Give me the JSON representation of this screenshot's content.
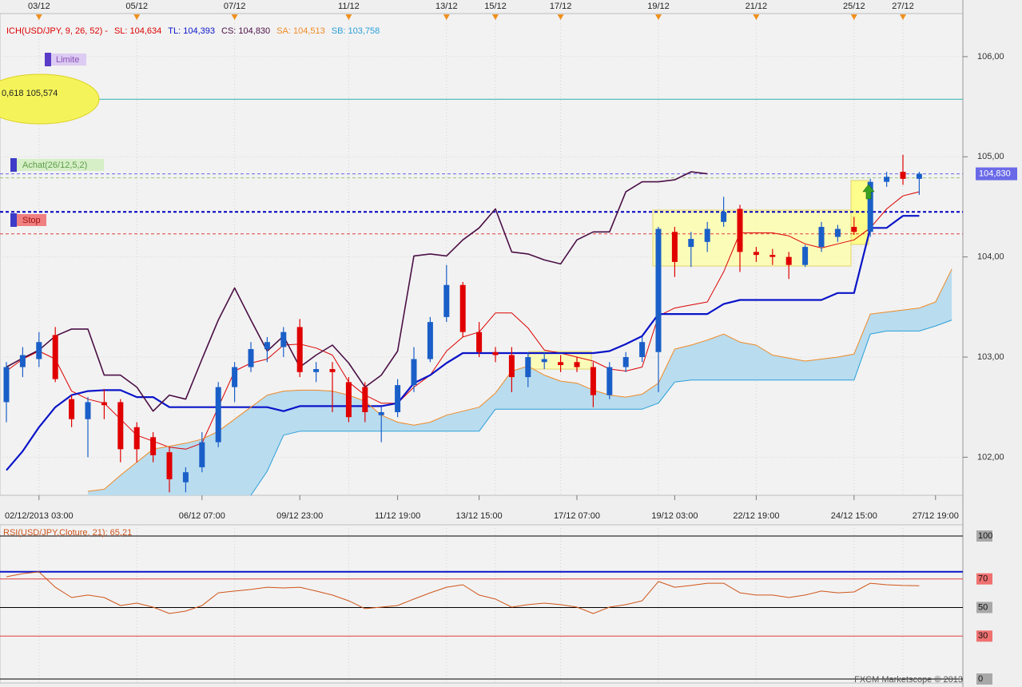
{
  "chart_data": [
    {
      "type": "candlestick",
      "title": "ICH(USD/JPY, 9, 26, 52) -",
      "x": [
        null,
        null,
        "02/12/2013 03:00",
        null,
        null,
        null,
        null,
        null,
        null,
        null,
        null,
        null,
        "06/12 07:00",
        null,
        null,
        null,
        null,
        null,
        "09/12 23:00",
        null,
        null,
        null,
        null,
        null,
        "11/12 19:00",
        null,
        null,
        null,
        null,
        "13/12 15:00",
        null,
        null,
        null,
        null,
        null,
        "17/12 07:00",
        null,
        null,
        null,
        null,
        null,
        "19/12 03:00",
        null,
        null,
        null,
        null,
        "22/12 19:00",
        null,
        null,
        null,
        null,
        null,
        "24/12 15:00",
        null,
        null,
        null,
        null,
        "27/12 19:00",
        null
      ],
      "top_labels": [
        null,
        null,
        "03/12",
        null,
        null,
        null,
        null,
        null,
        "05/12",
        null,
        null,
        null,
        null,
        null,
        "07/12",
        null,
        null,
        null,
        null,
        null,
        null,
        "11/12",
        null,
        null,
        null,
        null,
        null,
        "13/12",
        null,
        null,
        "15/12",
        null,
        null,
        null,
        "17/12",
        null,
        null,
        null,
        null,
        null,
        "19/12",
        null,
        null,
        null,
        null,
        null,
        "21/12",
        null,
        null,
        null,
        null,
        null,
        "25/12",
        null,
        null,
        "27/12",
        null,
        null,
        null
      ],
      "open": [
        102.55,
        102.9,
        102.98,
        103.22,
        102.58,
        102.38,
        102.55,
        102.55,
        102.3,
        102.2,
        102.05,
        101.75,
        101.9,
        102.15,
        102.7,
        102.9,
        103.08,
        103.1,
        103.3,
        102.85,
        102.88,
        102.75,
        102.7,
        102.42,
        102.45,
        102.72,
        102.98,
        103.4,
        103.72,
        103.25,
        103.05,
        103.02,
        102.8,
        102.95,
        102.95,
        102.95,
        102.9,
        102.62,
        102.9,
        103.0,
        103.05,
        104.25,
        104.1,
        104.15,
        104.35,
        104.48,
        104.05,
        104.02,
        104.0,
        103.92,
        104.1,
        104.2,
        104.3,
        104.25,
        104.75,
        104.85,
        104.78,
        null,
        null
      ],
      "high": [
        102.95,
        103.1,
        103.25,
        103.3,
        102.62,
        102.6,
        102.68,
        102.58,
        102.35,
        102.25,
        102.1,
        101.9,
        102.25,
        102.75,
        102.95,
        103.15,
        103.2,
        103.3,
        103.38,
        102.95,
        102.95,
        102.8,
        102.75,
        102.5,
        102.78,
        103.1,
        103.4,
        103.92,
        103.75,
        103.35,
        103.1,
        103.1,
        103.05,
        103.05,
        103.02,
        103.0,
        102.95,
        102.95,
        103.05,
        103.2,
        104.3,
        104.3,
        104.25,
        104.35,
        104.6,
        104.52,
        104.1,
        104.08,
        104.05,
        104.12,
        104.35,
        104.32,
        104.4,
        104.78,
        104.85,
        105.02,
        104.85,
        null,
        null
      ],
      "low": [
        102.35,
        102.8,
        102.9,
        102.75,
        102.3,
        102.0,
        102.38,
        101.95,
        101.95,
        101.95,
        101.65,
        101.65,
        101.85,
        102.1,
        102.55,
        102.85,
        102.95,
        103.0,
        102.8,
        102.75,
        102.45,
        102.35,
        102.35,
        102.15,
        102.4,
        102.65,
        102.95,
        103.35,
        103.2,
        103.0,
        102.95,
        102.65,
        102.7,
        102.88,
        102.85,
        102.85,
        102.5,
        102.58,
        102.85,
        102.95,
        102.65,
        103.8,
        103.9,
        104.05,
        104.3,
        103.85,
        103.95,
        103.92,
        103.78,
        103.9,
        104.05,
        104.15,
        104.22,
        104.2,
        104.7,
        104.72,
        104.62,
        null,
        null
      ],
      "close": [
        102.9,
        103.02,
        103.15,
        102.78,
        102.38,
        102.55,
        102.52,
        102.08,
        102.08,
        102.02,
        101.78,
        101.85,
        102.15,
        102.7,
        102.9,
        103.08,
        103.15,
        103.25,
        102.85,
        102.88,
        102.85,
        102.4,
        102.45,
        102.45,
        102.72,
        102.98,
        103.35,
        103.72,
        103.25,
        103.05,
        103.02,
        102.8,
        103.0,
        102.98,
        102.92,
        102.9,
        102.62,
        102.9,
        103.0,
        103.15,
        104.28,
        103.95,
        104.18,
        104.28,
        104.45,
        104.05,
        104.02,
        104.0,
        103.92,
        104.1,
        104.3,
        104.28,
        104.25,
        104.75,
        104.8,
        104.78,
        104.83,
        null,
        null
      ],
      "up_color": "#1a5fc8",
      "down_color": "#e00000",
      "series": [
        {
          "name": "SL: 104,634",
          "color": "#dd0000",
          "width": 1,
          "values": [
            102.86,
            102.98,
            103.06,
            102.98,
            102.66,
            102.58,
            102.54,
            102.38,
            102.22,
            102.16,
            102.1,
            102.08,
            102.14,
            102.5,
            102.86,
            102.94,
            102.98,
            103.12,
            103.13,
            103.09,
            103.02,
            102.75,
            102.62,
            102.54,
            102.54,
            102.7,
            102.82,
            103.06,
            103.2,
            103.25,
            103.44,
            103.44,
            103.29,
            103.07,
            103.04,
            103.0,
            102.96,
            102.88,
            102.86,
            102.9,
            103.41,
            103.49,
            103.52,
            103.55,
            103.85,
            104.24,
            104.24,
            104.24,
            104.21,
            104.13,
            104.09,
            104.13,
            104.17,
            104.29,
            104.48,
            104.61,
            104.65,
            null,
            null
          ]
        },
        {
          "name": "TL: 104,393",
          "color": "#0a14c8",
          "width": 2.2,
          "values": [
            101.87,
            102.06,
            102.3,
            102.5,
            102.62,
            102.66,
            102.67,
            102.67,
            102.6,
            102.6,
            102.5,
            102.5,
            102.5,
            102.5,
            102.5,
            102.5,
            102.5,
            102.46,
            102.51,
            102.51,
            102.51,
            102.51,
            102.51,
            102.51,
            102.54,
            102.74,
            102.82,
            102.94,
            103.04,
            103.04,
            103.04,
            103.04,
            103.04,
            103.04,
            103.04,
            103.04,
            103.04,
            103.06,
            103.13,
            103.21,
            103.43,
            103.43,
            103.43,
            103.43,
            103.53,
            103.57,
            103.57,
            103.57,
            103.57,
            103.57,
            103.57,
            103.64,
            103.64,
            104.29,
            104.29,
            104.41,
            104.41,
            null,
            null
          ]
        },
        {
          "name": "CS: 104,830",
          "color": "#4a0f45",
          "width": 1.6,
          "values": [
            102.9,
            102.99,
            103.07,
            103.21,
            103.28,
            103.28,
            102.82,
            102.82,
            102.7,
            102.46,
            102.62,
            102.58,
            102.98,
            103.37,
            103.69,
            103.37,
            103.06,
            103.21,
            102.9,
            103.02,
            103.12,
            102.94,
            102.7,
            102.82,
            103.06,
            104.01,
            104.03,
            104.01,
            104.17,
            104.29,
            104.48,
            104.05,
            104.03,
            103.97,
            103.93,
            104.17,
            104.25,
            104.25,
            104.65,
            104.75,
            104.75,
            104.77,
            104.85,
            104.83,
            null,
            null,
            null,
            null,
            null,
            null,
            null,
            null,
            null,
            null,
            null,
            null,
            null,
            null,
            null
          ]
        },
        {
          "name": "SA: 104,513",
          "color": "#f08a24",
          "width": 1,
          "values": [
            null,
            null,
            null,
            null,
            null,
            101.66,
            101.68,
            101.82,
            101.95,
            102.08,
            102.11,
            102.14,
            102.18,
            102.26,
            102.38,
            102.5,
            102.62,
            102.66,
            102.67,
            102.67,
            102.66,
            102.62,
            102.56,
            102.42,
            102.35,
            102.32,
            102.35,
            102.42,
            102.46,
            102.5,
            102.64,
            102.86,
            102.91,
            102.82,
            102.76,
            102.74,
            102.67,
            102.62,
            102.6,
            102.63,
            102.74,
            103.08,
            103.12,
            103.17,
            103.23,
            103.15,
            103.12,
            103.02,
            102.99,
            102.96,
            102.98,
            103.0,
            103.03,
            103.43,
            103.45,
            103.47,
            103.49,
            103.55,
            103.88
          ]
        },
        {
          "name": "SB: 103,758",
          "color": "#2aa0d8",
          "width": 1,
          "values": [
            null,
            null,
            null,
            null,
            null,
            null,
            null,
            null,
            null,
            null,
            null,
            null,
            null,
            null,
            null,
            101.62,
            101.86,
            102.22,
            102.26,
            102.26,
            102.26,
            102.26,
            102.26,
            102.26,
            102.26,
            102.26,
            102.26,
            102.26,
            102.26,
            102.26,
            102.48,
            102.48,
            102.48,
            102.48,
            102.48,
            102.48,
            102.48,
            102.48,
            102.48,
            102.48,
            102.54,
            102.75,
            102.77,
            102.77,
            102.77,
            102.77,
            102.77,
            102.77,
            102.77,
            102.77,
            102.77,
            102.77,
            102.77,
            103.23,
            103.26,
            103.26,
            103.26,
            103.31,
            103.37
          ]
        }
      ],
      "cloud_color": "#b9dcef",
      "levels": [
        {
          "value": 105.574,
          "color": "#2cb0b0",
          "dash": false,
          "width": 1
        },
        {
          "value": 104.83,
          "color": "#6a6ae8",
          "dash": true,
          "width": 1
        },
        {
          "value": 104.79,
          "color": "#9cc47a",
          "dash": true,
          "width": 1
        },
        {
          "value": 104.45,
          "color": "#0000c0",
          "dash": true,
          "width": 2
        },
        {
          "value": 104.23,
          "color": "#e04040",
          "dash": true,
          "width": 1
        }
      ],
      "last_price_label": "104,830",
      "annotations": {
        "limit": "Limite",
        "fib": "0,618 105,574",
        "buy": "Achat(26/12,5,2)",
        "stop": "Stop"
      },
      "ylim": [
        101.62,
        106.43
      ],
      "yticks": [
        {
          "value": 102,
          "label": "102,00"
        },
        {
          "value": 103,
          "label": "103,00"
        },
        {
          "value": 104,
          "label": "104,00"
        },
        {
          "value": 105,
          "label": "105,00"
        },
        {
          "value": 106,
          "label": "106,00"
        }
      ],
      "grid": true
    },
    {
      "type": "line",
      "series": [
        {
          "name": "RSI(USD/JPY,Cloture, 21): 65,21",
          "color": "#d0551a",
          "width": 1,
          "values": [
            71.5,
            73.7,
            74.9,
            64.2,
            57.0,
            58.7,
            57.0,
            51.4,
            53.1,
            50.3,
            45.8,
            47.5,
            51.4,
            60.3,
            61.5,
            62.6,
            64.2,
            63.7,
            64.2,
            61.5,
            58.7,
            54.7,
            49.2,
            50.3,
            51.4,
            55.9,
            60.3,
            64.2,
            65.9,
            58.7,
            55.9,
            50.3,
            52.0,
            53.1,
            52.0,
            50.3,
            45.8,
            50.3,
            52.0,
            54.7,
            68.2,
            64.2,
            65.4,
            67.0,
            67.0,
            60.3,
            58.7,
            58.7,
            57.0,
            58.7,
            61.5,
            60.3,
            60.9,
            67.0,
            65.9,
            65.4,
            65.21,
            null,
            null
          ]
        }
      ],
      "levels": [
        {
          "value": 75,
          "color": "#0a14c8",
          "dash": false,
          "width": 2
        }
      ],
      "ylim": [
        0,
        100
      ],
      "yticks": [
        0,
        30,
        50,
        70,
        100
      ],
      "grid_colors": [
        "#000000",
        "#e04040",
        "#000000",
        "#e04040",
        "#000000"
      ],
      "grid": true
    }
  ],
  "footer": "FXCM Marketscope © 2013"
}
